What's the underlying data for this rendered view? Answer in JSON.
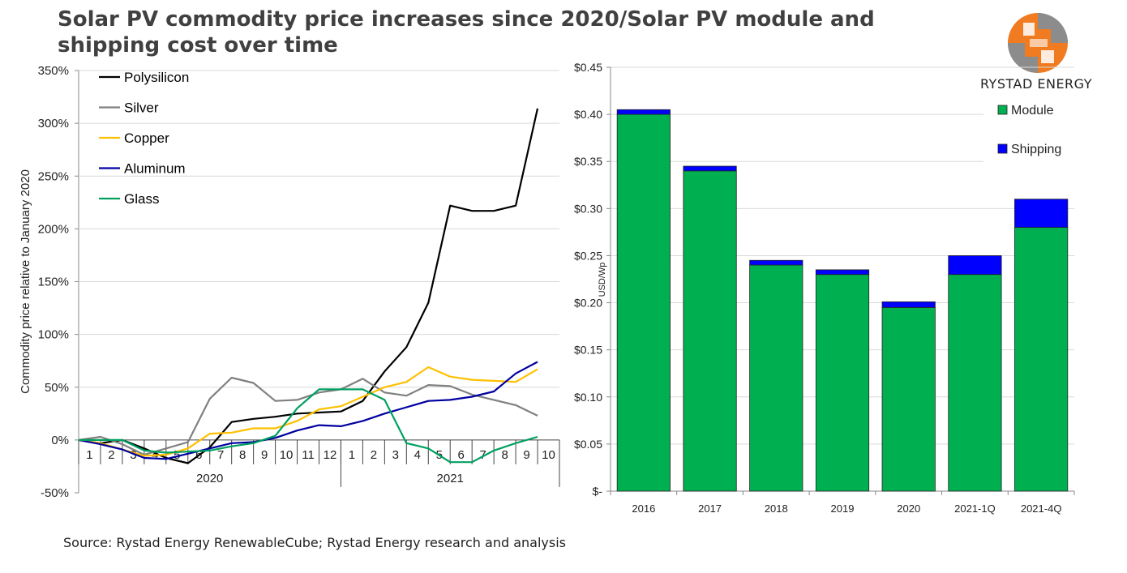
{
  "title": "Solar PV commodity price increases since 2020/Solar PV module and shipping cost over time",
  "source": "Source:  Rystad Energy  RenewableCube; Rystad Energy research and analysis",
  "brand": "RYSTAD ENERGY",
  "colors": {
    "polysilicon": "#000000",
    "silver": "#808080",
    "copper": "#ffc000",
    "aluminum": "#0000a0",
    "glass": "#00a060",
    "module": "#00b050",
    "shipping": "#0000ff",
    "logo_orange": "#f07b20",
    "logo_gray": "#8c8c8c"
  },
  "chart_data": [
    {
      "type": "line",
      "ylabel": "Commodity price relative to January  2020",
      "ylim": [
        -50,
        350
      ],
      "yticks": [
        "350%",
        "300%",
        "250%",
        "200%",
        "150%",
        "100%",
        "50%",
        "0%",
        "-50%"
      ],
      "ytick_values": [
        350,
        300,
        250,
        200,
        150,
        100,
        50,
        0,
        -50
      ],
      "x": [
        "1",
        "2",
        "3",
        "4",
        "5",
        "6",
        "7",
        "8",
        "9",
        "10",
        "11",
        "12",
        "1",
        "2",
        "3",
        "4",
        "5",
        "6",
        "7",
        "8",
        "9",
        "10"
      ],
      "year_groups": [
        {
          "label": "2020",
          "count": 12
        },
        {
          "label": "2021",
          "count": 10
        }
      ],
      "series": [
        {
          "name": "Polysilicon",
          "color_key": "polysilicon",
          "values": [
            0,
            -3,
            0,
            -8,
            -17,
            -22,
            -7,
            17,
            20,
            22,
            25,
            26,
            27,
            37,
            65,
            88,
            130,
            222,
            217,
            217,
            222,
            314
          ]
        },
        {
          "name": "Silver",
          "color_key": "silver",
          "values": [
            0,
            3,
            -4,
            -14,
            -8,
            -2,
            39,
            59,
            54,
            37,
            38,
            45,
            48,
            58,
            45,
            42,
            52,
            51,
            43,
            38,
            33,
            23
          ]
        },
        {
          "name": "Copper",
          "color_key": "copper",
          "values": [
            0,
            -3,
            -9,
            -15,
            -14,
            -8,
            6,
            7,
            11,
            11,
            18,
            29,
            32,
            41,
            50,
            55,
            69,
            60,
            57,
            56,
            55,
            67
          ]
        },
        {
          "name": "Aluminum",
          "color_key": "aluminum",
          "values": [
            0,
            -4,
            -9,
            -17,
            -18,
            -13,
            -8,
            -3,
            -2,
            2,
            9,
            14,
            13,
            18,
            25,
            31,
            37,
            38,
            41,
            46,
            63,
            74
          ]
        },
        {
          "name": "Glass",
          "color_key": "glass",
          "values": [
            0,
            0,
            0,
            -10,
            -12,
            -11,
            -10,
            -6,
            -3,
            4,
            30,
            48,
            48,
            48,
            38,
            -3,
            -8,
            -21,
            -21,
            -10,
            -3,
            3
          ]
        }
      ]
    },
    {
      "type": "bar",
      "stacked": true,
      "ylabel": "USD/Wp",
      "ylim": [
        0,
        0.45
      ],
      "yticks": [
        "$-",
        "$0.05",
        "$0.10",
        "$0.15",
        "$0.20",
        "$0.25",
        "$0.30",
        "$0.35",
        "$0.40",
        "$0.45"
      ],
      "ytick_values": [
        0,
        0.05,
        0.1,
        0.15,
        0.2,
        0.25,
        0.3,
        0.35,
        0.4,
        0.45
      ],
      "categories": [
        "2016",
        "2017",
        "2018",
        "2019",
        "2020",
        "2021-1Q",
        "2021-4Q"
      ],
      "series": [
        {
          "name": "Module",
          "color_key": "module",
          "values": [
            0.4,
            0.34,
            0.24,
            0.23,
            0.195,
            0.23,
            0.28
          ]
        },
        {
          "name": "Shipping",
          "color_key": "shipping",
          "values": [
            0.005,
            0.005,
            0.005,
            0.005,
            0.006,
            0.02,
            0.03
          ]
        }
      ]
    }
  ]
}
